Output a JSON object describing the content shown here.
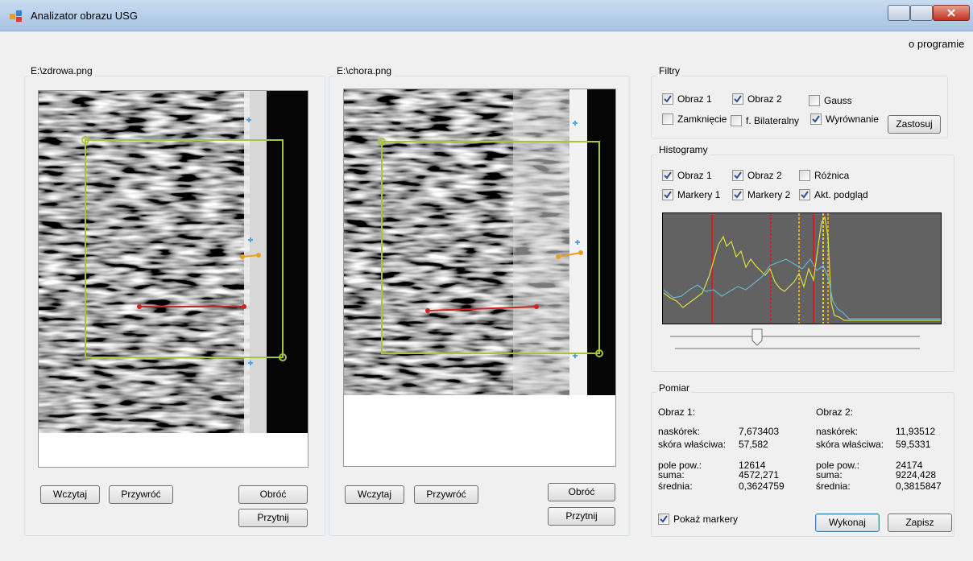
{
  "window": {
    "title": "Analizator obrazu USG"
  },
  "menu": {
    "items": [
      "o programie"
    ]
  },
  "image_panels": [
    {
      "file": "E:\\zdrowa.png",
      "buttons": [
        "Wczytaj",
        "Przywróć",
        "Obróć",
        "Przytnij"
      ]
    },
    {
      "file": "E:\\chora.png",
      "buttons": [
        "Wczytaj",
        "Przywróć",
        "Obróć",
        "Przytnij"
      ]
    }
  ],
  "filters": {
    "title": "Filtry",
    "checkboxes": [
      {
        "label": "Obraz 1",
        "checked": true
      },
      {
        "label": "Obraz 2",
        "checked": true
      },
      {
        "label": "Gauss",
        "checked": false
      },
      {
        "label": "Zamknięcie",
        "checked": false
      },
      {
        "label": "f. Bilateralny",
        "checked": false
      },
      {
        "label": "Wyrównanie",
        "checked": true
      }
    ],
    "button": "Zastosuj"
  },
  "histograms": {
    "title": "Histogramy",
    "checkboxes": [
      {
        "label": "Obraz 1",
        "checked": true
      },
      {
        "label": "Obraz 2",
        "checked": true
      },
      {
        "label": "Różnica",
        "checked": false
      },
      {
        "label": "Markery 1",
        "checked": true
      },
      {
        "label": "Markery 2",
        "checked": true
      },
      {
        "label": "Akt. podgląd",
        "checked": true
      }
    ]
  },
  "measurement": {
    "title": "Pomiar",
    "columns": [
      {
        "heading": "Obraz 1:",
        "rows": [
          {
            "label": "naskórek:",
            "value": "7,673403"
          },
          {
            "label": "skóra właściwa:",
            "value": "57,582"
          },
          {
            "label": "pole pow.:",
            "value": "12614"
          },
          {
            "label": "suma:",
            "value": "4572,271"
          },
          {
            "label": "średnia:",
            "value": "0,3624759"
          }
        ]
      },
      {
        "heading": "Obraz 2:",
        "rows": [
          {
            "label": "naskórek:",
            "value": "11,93512"
          },
          {
            "label": "skóra właściwa:",
            "value": "59,5331"
          },
          {
            "label": "pole pow.:",
            "value": "24174"
          },
          {
            "label": "suma:",
            "value": "9224,428"
          },
          {
            "label": "średnia:",
            "value": "0,3815847"
          }
        ]
      }
    ],
    "show_markers": {
      "label": "Pokaż markery",
      "checked": true
    },
    "buttons": [
      "Wykonaj",
      "Zapisz"
    ]
  }
}
